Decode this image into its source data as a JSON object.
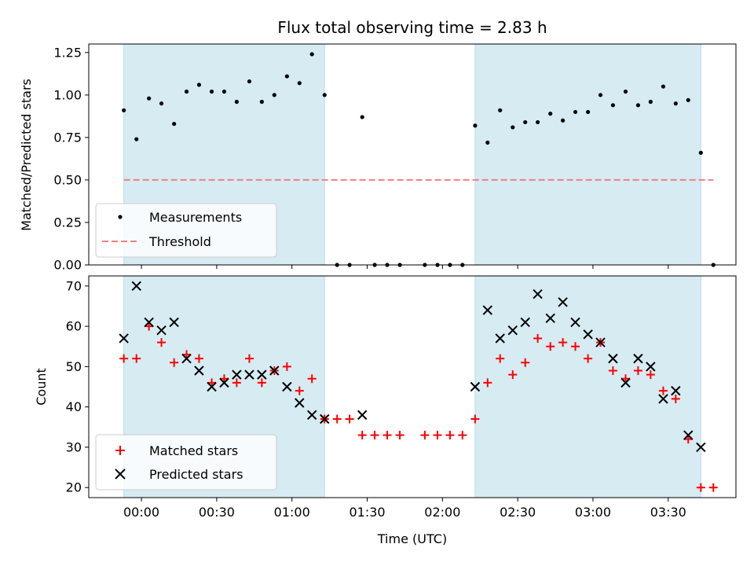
{
  "chart_data": [
    {
      "type": "scatter",
      "title": "Flux total observing time = 2.83 h",
      "xlabel": "",
      "ylabel": "Matched/Predicted stars",
      "xlim": [
        -0.35,
        3.95
      ],
      "ylim": [
        0.0,
        1.3
      ],
      "yticks": [
        "0.00",
        "0.25",
        "0.50",
        "0.75",
        "1.00",
        "1.25"
      ],
      "ytick_values": [
        0.0,
        0.25,
        0.5,
        0.75,
        1.0,
        1.25
      ],
      "xtick_values": [
        0,
        0.5,
        1.0,
        1.5,
        2.0,
        2.5,
        3.0,
        3.5
      ],
      "observing_windows": [
        [
          -0.117,
          1.217
        ],
        [
          2.217,
          3.717
        ]
      ],
      "threshold": {
        "value": 0.5,
        "x_range": [
          -0.117,
          3.8
        ],
        "color": "#f08080"
      },
      "legend": {
        "placement": "lower-left",
        "entries": [
          "Measurements",
          "Threshold"
        ]
      },
      "series": [
        {
          "name": "Measurements",
          "color": "#000000",
          "x": [
            -0.117,
            -0.033,
            0.05,
            0.133,
            0.217,
            0.3,
            0.383,
            0.467,
            0.55,
            0.633,
            0.717,
            0.8,
            0.883,
            0.967,
            1.05,
            1.133,
            1.217,
            1.3,
            1.383,
            1.467,
            1.55,
            1.633,
            1.717,
            1.883,
            1.967,
            2.05,
            2.133,
            2.217,
            2.3,
            2.383,
            2.467,
            2.55,
            2.633,
            2.717,
            2.8,
            2.883,
            2.967,
            3.05,
            3.133,
            3.217,
            3.3,
            3.383,
            3.467,
            3.55,
            3.633,
            3.717,
            3.8
          ],
          "y": [
            0.91,
            0.74,
            0.98,
            0.95,
            0.83,
            1.02,
            1.06,
            1.02,
            1.02,
            0.96,
            1.08,
            0.96,
            1.0,
            1.11,
            1.07,
            1.24,
            1.0,
            0.0,
            0.0,
            0.87,
            0.0,
            0.0,
            0.0,
            0.0,
            0.0,
            0.0,
            0.0,
            0.82,
            0.72,
            0.91,
            0.81,
            0.84,
            0.84,
            0.89,
            0.85,
            0.9,
            0.9,
            1.0,
            0.94,
            1.02,
            0.94,
            0.96,
            1.05,
            0.95,
            0.97,
            0.66,
            0.0
          ]
        }
      ]
    },
    {
      "type": "scatter",
      "title": "",
      "xlabel": "Time (UTC)",
      "ylabel": "Count",
      "xlim": [
        -0.35,
        3.95
      ],
      "ylim": [
        17.5,
        72.5
      ],
      "yticks": [
        "20",
        "30",
        "40",
        "50",
        "60",
        "70"
      ],
      "ytick_values": [
        20,
        30,
        40,
        50,
        60,
        70
      ],
      "xticks": [
        "00:00",
        "00:30",
        "01:00",
        "01:30",
        "02:00",
        "02:30",
        "03:00",
        "03:30"
      ],
      "xtick_values": [
        0,
        0.5,
        1.0,
        1.5,
        2.0,
        2.5,
        3.0,
        3.5
      ],
      "observing_windows": [
        [
          -0.117,
          1.217
        ],
        [
          2.217,
          3.717
        ]
      ],
      "legend": {
        "placement": "lower-left",
        "entries": [
          "Matched stars",
          "Predicted stars"
        ]
      },
      "series": [
        {
          "name": "Matched stars",
          "marker": "plus",
          "color": "#ff0000",
          "x": [
            -0.117,
            -0.033,
            0.05,
            0.133,
            0.217,
            0.3,
            0.383,
            0.467,
            0.55,
            0.633,
            0.717,
            0.8,
            0.883,
            0.967,
            1.05,
            1.133,
            1.217,
            1.3,
            1.383,
            1.467,
            1.55,
            1.633,
            1.717,
            1.883,
            1.967,
            2.05,
            2.133,
            2.217,
            2.3,
            2.383,
            2.467,
            2.55,
            2.633,
            2.717,
            2.8,
            2.883,
            2.967,
            3.05,
            3.133,
            3.217,
            3.3,
            3.383,
            3.467,
            3.55,
            3.633,
            3.717,
            3.8
          ],
          "y": [
            52,
            52,
            60,
            56,
            51,
            53,
            52,
            46,
            47,
            46,
            52,
            46,
            49,
            50,
            44,
            47,
            37,
            37,
            37,
            33,
            33,
            33,
            33,
            33,
            33,
            33,
            33,
            37,
            46,
            52,
            48,
            51,
            57,
            55,
            56,
            55,
            52,
            56,
            49,
            47,
            49,
            48,
            44,
            42,
            32,
            20,
            20
          ]
        },
        {
          "name": "Predicted stars",
          "marker": "x",
          "color": "#000000",
          "x": [
            -0.117,
            -0.033,
            0.05,
            0.133,
            0.217,
            0.3,
            0.383,
            0.467,
            0.55,
            0.633,
            0.717,
            0.8,
            0.883,
            0.967,
            1.05,
            1.133,
            1.217,
            1.467,
            2.217,
            2.3,
            2.383,
            2.467,
            2.55,
            2.633,
            2.717,
            2.8,
            2.883,
            2.967,
            3.05,
            3.133,
            3.217,
            3.3,
            3.383,
            3.467,
            3.55,
            3.633,
            3.717
          ],
          "y": [
            57,
            70,
            61,
            59,
            61,
            52,
            49,
            45,
            46,
            48,
            48,
            48,
            49,
            45,
            41,
            38,
            37,
            38,
            45,
            64,
            57,
            59,
            61,
            68,
            62,
            66,
            61,
            58,
            56,
            52,
            46,
            52,
            50,
            42,
            44,
            33,
            30
          ]
        }
      ]
    }
  ]
}
